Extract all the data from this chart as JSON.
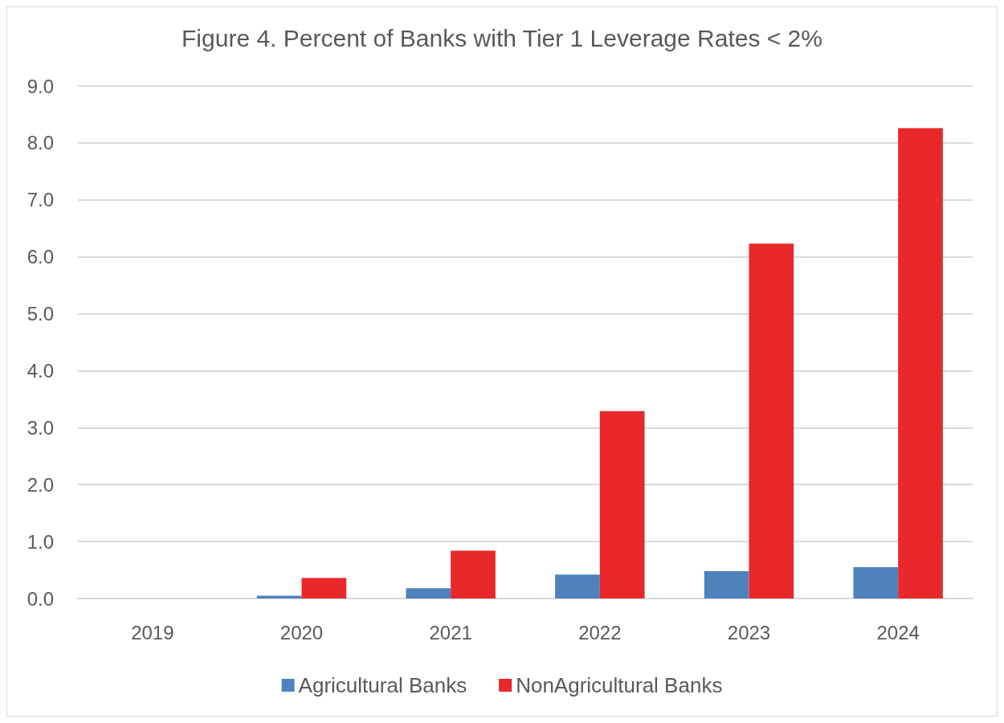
{
  "chart_data": {
    "type": "bar",
    "title": "Figure 4. Percent of Banks with Tier 1 Leverage Rates < 2%",
    "categories": [
      "2019",
      "2020",
      "2021",
      "2022",
      "2023",
      "2024"
    ],
    "series": [
      {
        "name": "Agricultural Banks",
        "color": "#4f81bd",
        "values": [
          0,
          0.05,
          0.18,
          0.42,
          0.48,
          0.55
        ]
      },
      {
        "name": "NonAgricultural Banks",
        "color": "#e8282a",
        "values": [
          0,
          0.36,
          0.84,
          3.29,
          6.23,
          8.26
        ]
      }
    ],
    "ylim": [
      0,
      9
    ],
    "yticks": [
      {
        "value": 0,
        "label": "0.0"
      },
      {
        "value": 1,
        "label": "1.0"
      },
      {
        "value": 2,
        "label": "2.0"
      },
      {
        "value": 3,
        "label": "3.0"
      },
      {
        "value": 4,
        "label": "4.0"
      },
      {
        "value": 5,
        "label": "5.0"
      },
      {
        "value": 6,
        "label": "6.0"
      },
      {
        "value": 7,
        "label": "7.0"
      },
      {
        "value": 8,
        "label": "8.0"
      },
      {
        "value": 9,
        "label": "9.0"
      }
    ],
    "grid": "y",
    "legend": "bottom"
  }
}
